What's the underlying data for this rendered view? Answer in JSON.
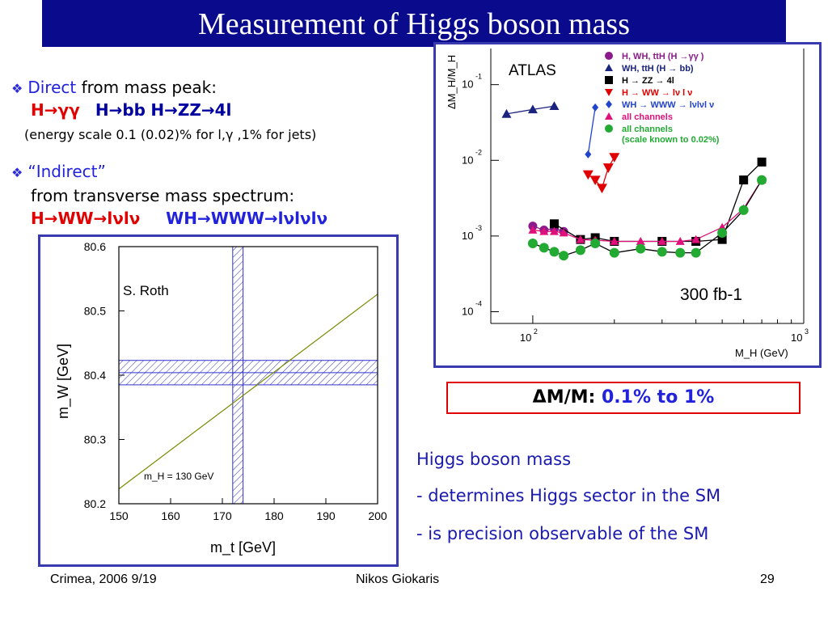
{
  "title": "Measurement of Higgs boson mass",
  "bullets": {
    "direct": {
      "keyword": "Direct",
      "rest": "from mass peak:",
      "ch1": "H→γγ",
      "ch2": "H→bb",
      "ch3": "H→ZZ→4l",
      "note": "(energy scale 0.1 (0.02)% for l,γ ,1% for jets)"
    },
    "indirect": {
      "keyword": "“Indirect”",
      "line1": "from transverse mass spectrum:",
      "ch1": "H→WW→lνlν",
      "ch2": "WH→WWW→lνlνlν"
    }
  },
  "left_plot": {
    "author": "S. Roth",
    "annotation": "m_H = 130 GeV",
    "xlabel": "m_t [GeV]",
    "ylabel": "m_W [GeV]"
  },
  "right_plot": {
    "experiment": "ATLAS",
    "luminosity": "300 fb-1",
    "xlabel": "M_H (GeV)",
    "ylabel": "ΔM_H/M_H",
    "legend": [
      {
        "label": "H, WH, ttH (H →γγ )",
        "color": "#8b1a8b",
        "marker": "circle"
      },
      {
        "label": "WH, ttH (H → bb)",
        "color": "#1a237e",
        "marker": "triangle-up"
      },
      {
        "label": "H → ZZ → 4l",
        "color": "#000000",
        "marker": "square"
      },
      {
        "label": "H → WW → lν l ν",
        "color": "#e00000",
        "marker": "triangle-down"
      },
      {
        "label": "WH → WWW → lνlνl ν",
        "color": "#2244cc",
        "marker": "diamond"
      },
      {
        "label": "all channels",
        "color": "#e0107a",
        "marker": "triangle-up"
      },
      {
        "label": "all channels (scale known to 0.02%)",
        "color": "#22aa33",
        "marker": "circle"
      }
    ]
  },
  "chart_data": [
    {
      "type": "line",
      "xlabel": "m_t [GeV]",
      "ylabel": "m_W [GeV]",
      "xlim": [
        150,
        200
      ],
      "ylim": [
        80.2,
        80.6
      ],
      "x_ticks": [
        150,
        160,
        170,
        180,
        190,
        200
      ],
      "y_ticks": [
        80.2,
        80.3,
        80.4,
        80.5,
        80.6
      ],
      "series": [
        {
          "name": "m_H = 130 GeV",
          "x": [
            150,
            200
          ],
          "y": [
            80.223,
            80.526
          ]
        }
      ],
      "bands": {
        "mt": [
          172,
          174
        ],
        "mw": [
          80.385,
          80.423
        ],
        "mw_center": 80.404
      }
    },
    {
      "type": "scatter",
      "xlabel": "M_H (GeV)",
      "ylabel": "ΔM_H/M_H",
      "xscale": "log",
      "yscale": "log",
      "xlim": [
        70,
        1000
      ],
      "ylim": [
        7e-05,
        0.3
      ],
      "y_ticks": [
        "10^-1",
        "10^-2",
        "10^-3",
        "10^-4"
      ],
      "x_ticks": [
        "10^2",
        "10^3"
      ],
      "series": [
        {
          "name": "H, WH, ttH (H →γγ )",
          "x": [
            100,
            110,
            120,
            130
          ],
          "y": [
            0.00135,
            0.0012,
            0.00125,
            0.00115
          ]
        },
        {
          "name": "WH, ttH (H → bb)",
          "x": [
            80,
            100,
            120
          ],
          "y": [
            0.041,
            0.047,
            0.052
          ]
        },
        {
          "name": "H → ZZ → 4l",
          "x": [
            120,
            150,
            170,
            200,
            300,
            400,
            500,
            600,
            700
          ],
          "y": [
            0.00145,
            0.0009,
            0.00095,
            0.00085,
            0.00085,
            0.00085,
            0.0009,
            0.0055,
            0.0095
          ]
        },
        {
          "name": "H → WW → lν l ν",
          "x": [
            160,
            170,
            180,
            190,
            200
          ],
          "y": [
            0.0065,
            0.0055,
            0.0043,
            0.008,
            0.011
          ]
        },
        {
          "name": "WH → WWW → lνlνl ν",
          "x": [
            160,
            170
          ],
          "y": [
            0.012,
            0.05
          ]
        },
        {
          "name": "all channels",
          "x": [
            100,
            110,
            120,
            130,
            150,
            170,
            200,
            250,
            300,
            350,
            400,
            500,
            600,
            700
          ],
          "y": [
            0.0012,
            0.00115,
            0.00115,
            0.0011,
            0.0009,
            0.00088,
            0.00085,
            0.00085,
            0.00085,
            0.00085,
            0.0009,
            0.0013,
            0.0023,
            0.0055
          ]
        },
        {
          "name": "all channels (scale known to 0.02%)",
          "x": [
            100,
            110,
            120,
            130,
            150,
            170,
            200,
            250,
            300,
            350,
            400,
            500,
            600,
            700
          ],
          "y": [
            0.0008,
            0.0007,
            0.00062,
            0.00055,
            0.00065,
            0.0008,
            0.0006,
            0.00068,
            0.00062,
            0.0006,
            0.0006,
            0.0011,
            0.0022,
            0.0055
          ]
        }
      ]
    }
  ],
  "result": {
    "label": "ΔM/M:",
    "value": "0.1% to 1%"
  },
  "higgs_notes": {
    "heading": "Higgs boson mass",
    "line1": "- determines Higgs sector in the SM",
    "line2": "- is precision observable of the SM"
  },
  "footer": {
    "left": "Crimea, 2006 9/19",
    "center": "Nikos Giokaris",
    "right": "29"
  },
  "colors": {
    "title_bg": "#0a0a8c",
    "accent": "#2222dd",
    "alert": "#e00000"
  }
}
